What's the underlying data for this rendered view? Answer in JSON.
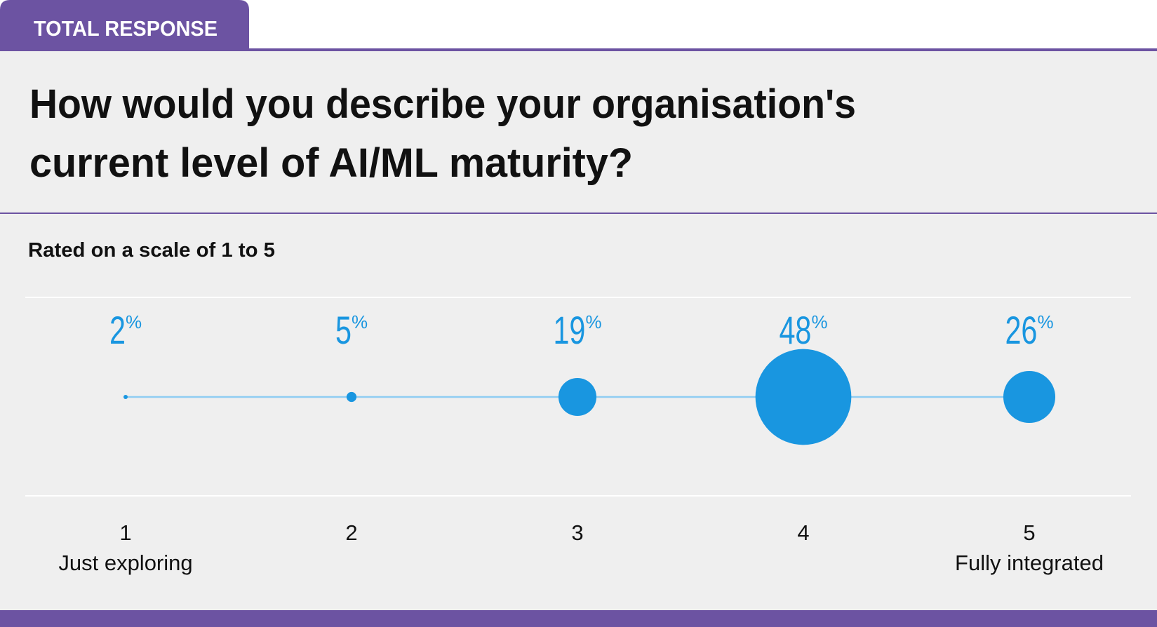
{
  "header": {
    "tab": "TOTAL RESPONSE"
  },
  "chart_data": {
    "type": "bubble",
    "title": "How would you describe your organisation's current level of AI/ML maturity?",
    "subtitle": "Rated on a scale of 1 to 5",
    "categories": [
      "1",
      "2",
      "3",
      "4",
      "5"
    ],
    "category_labels": [
      "Just exploring",
      null,
      null,
      null,
      "Fully integrated"
    ],
    "values": [
      2,
      5,
      19,
      48,
      26
    ],
    "value_labels": [
      "2%",
      "5%",
      "19%",
      "48%",
      "26%"
    ],
    "color": "#1996e0"
  }
}
